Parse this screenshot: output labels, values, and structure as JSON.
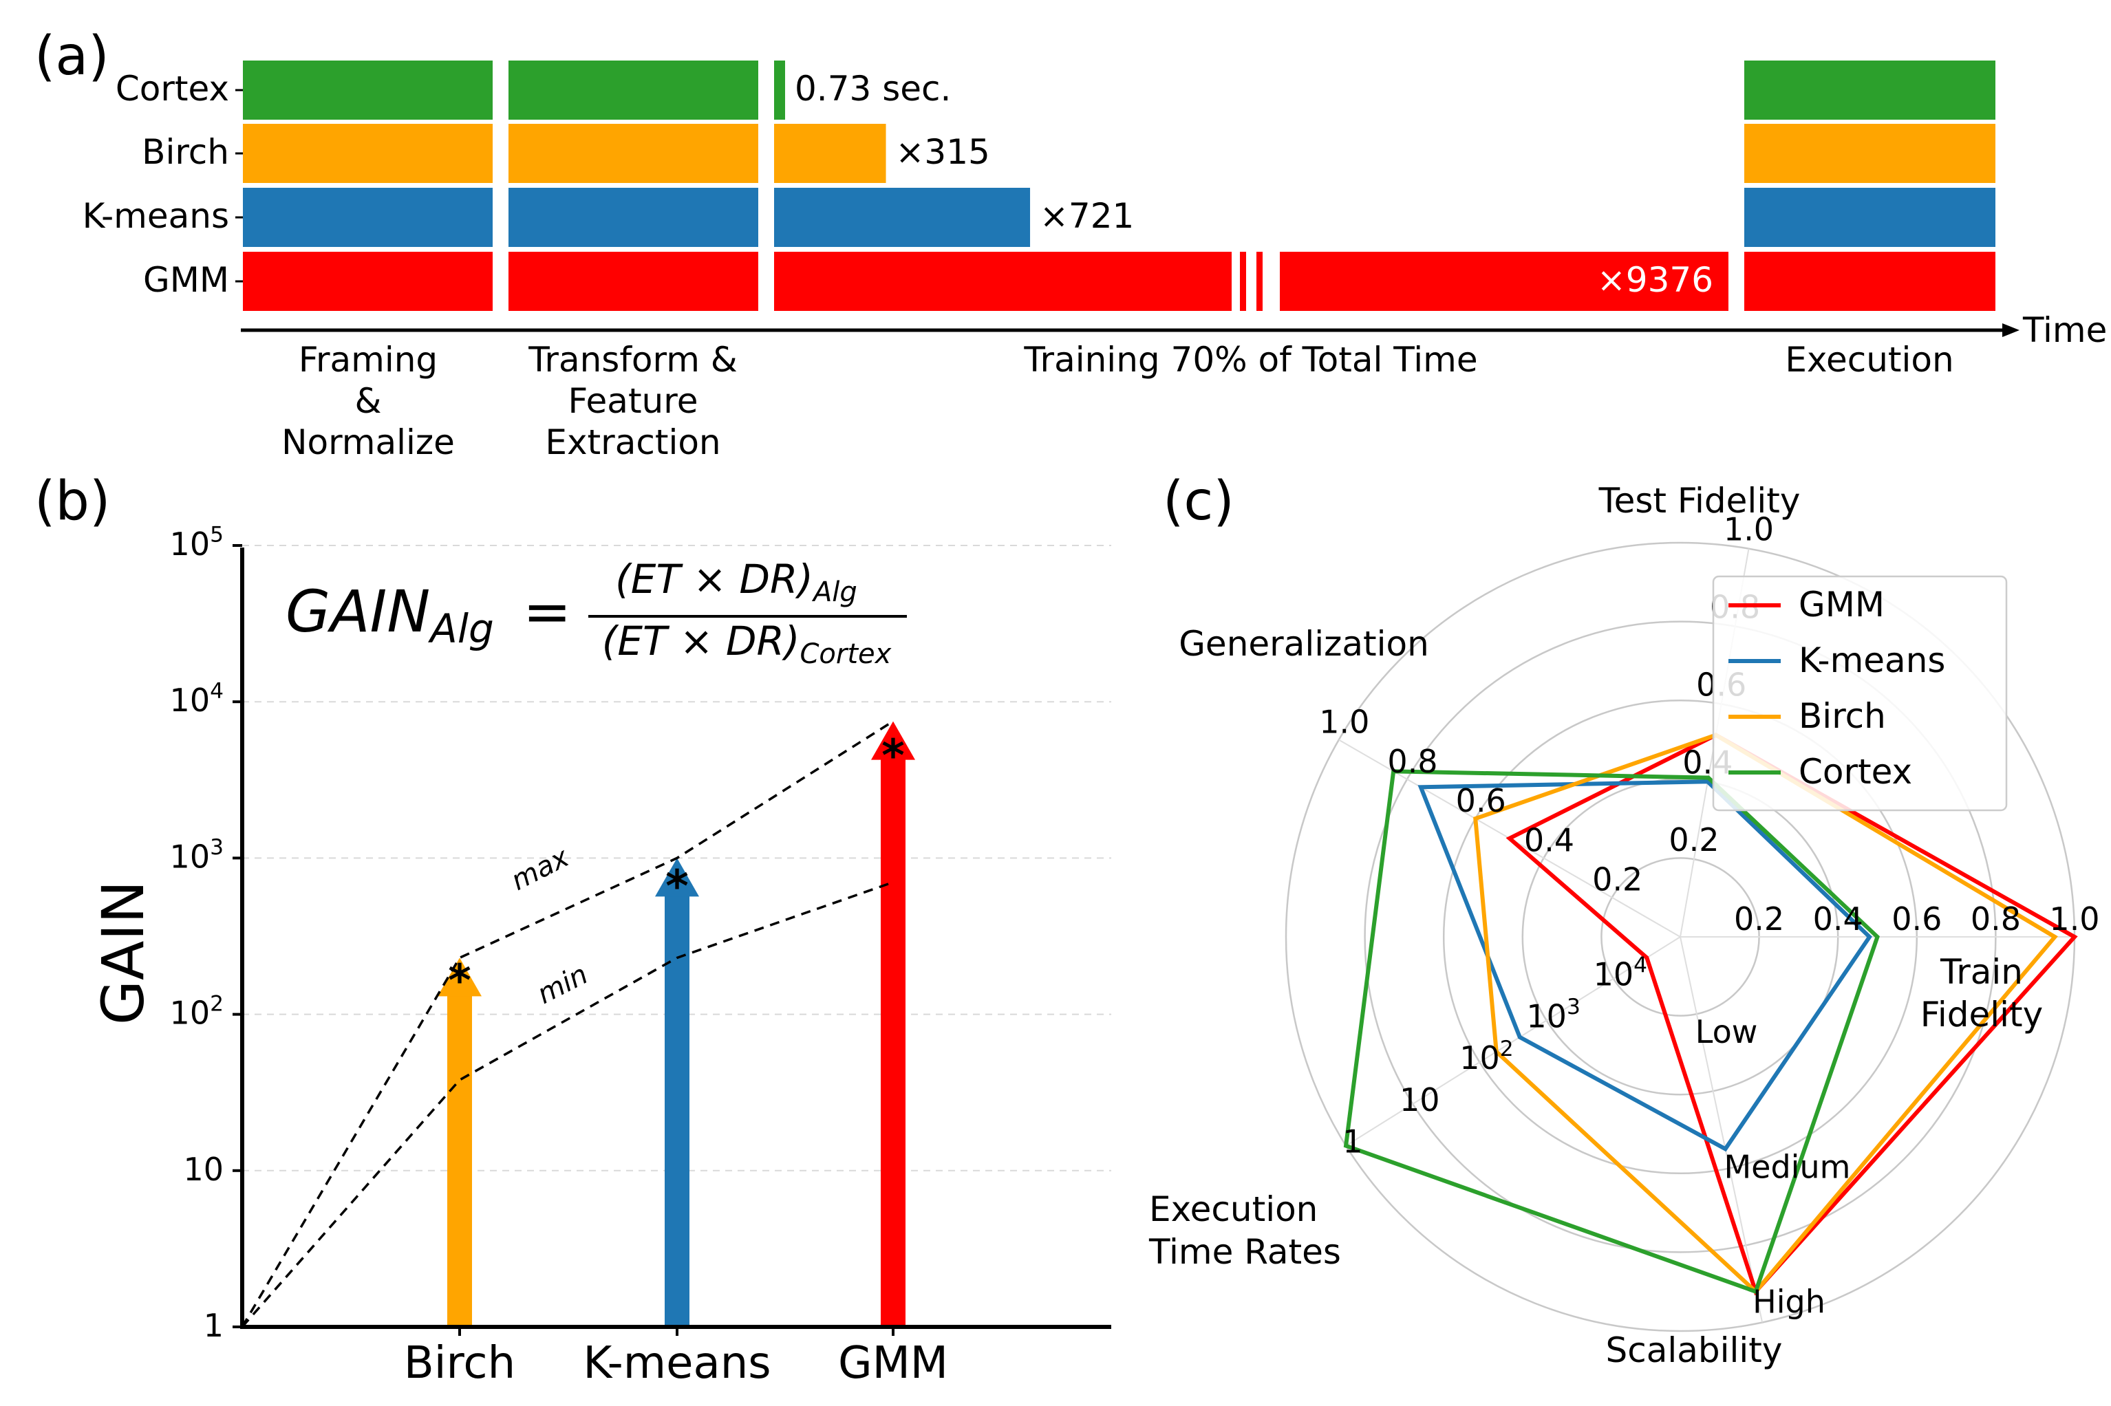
{
  "panels": {
    "a_label": "(a)",
    "b_label": "(b)",
    "c_label": "(c)"
  },
  "chart_data": [
    {
      "id": "a",
      "type": "bar",
      "orientation": "horizontal-stacked",
      "xlabel": "Time",
      "rows": [
        {
          "name": "Cortex",
          "color": "#2ca02c",
          "note": "0.73 sec.",
          "training_ratio": 1
        },
        {
          "name": "Birch",
          "color": "#ffa500",
          "note": "×315",
          "training_ratio": 315
        },
        {
          "name": "K-means",
          "color": "#1f77b4",
          "note": "×721",
          "training_ratio": 721
        },
        {
          "name": "GMM",
          "color": "#ff0000",
          "note": "×9376",
          "training_ratio": 9376
        }
      ],
      "stages": [
        {
          "label": [
            "Framing",
            "&",
            "Normalize"
          ]
        },
        {
          "label": [
            "Transform &",
            "Feature",
            "Extraction"
          ]
        },
        {
          "label": [
            "Training 70% of Total Time"
          ]
        },
        {
          "label": [
            "Execution"
          ]
        }
      ]
    },
    {
      "id": "b",
      "type": "bar",
      "scale": "log",
      "ylabel": "GAIN",
      "ylim": [
        1,
        100000
      ],
      "yticks": [
        {
          "value": 1,
          "base": "1",
          "exp": ""
        },
        {
          "value": 10,
          "base": "10",
          "exp": ""
        },
        {
          "value": 100,
          "base": "10",
          "exp": "2"
        },
        {
          "value": 1000,
          "base": "10",
          "exp": "3"
        },
        {
          "value": 10000,
          "base": "10",
          "exp": "4"
        },
        {
          "value": 100000,
          "base": "10",
          "exp": "5"
        }
      ],
      "categories": [
        "Birch",
        "K-means",
        "GMM"
      ],
      "colors": [
        "#ffa500",
        "#1f77b4",
        "#ff0000"
      ],
      "values": [
        230,
        1000,
        7500
      ],
      "markers": [
        175,
        700,
        4800
      ],
      "max_line": [
        1,
        230,
        1000,
        7500
      ],
      "min_line": [
        1,
        38,
        230,
        700
      ],
      "max_label": "max",
      "min_label": "min",
      "formula": {
        "lhs": "GAIN",
        "lhs_sub": "Alg",
        "equals": "=",
        "num": "(ET × DR)",
        "num_sub": "Alg",
        "den": "(ET × DR)",
        "den_sub": "Cortex"
      }
    },
    {
      "id": "c",
      "type": "radar",
      "axes": [
        {
          "name": "Train Fidelity",
          "label": [
            "Train",
            "Fidelity"
          ]
        },
        {
          "name": "Test Fidelity",
          "label": [
            "Test Fidelity"
          ]
        },
        {
          "name": "Generalization",
          "label": [
            "Generalization"
          ]
        },
        {
          "name": "Execution Time Rates",
          "label": [
            "Execution",
            "Time Rates"
          ]
        },
        {
          "name": "Scalability",
          "label": [
            "Scalability"
          ]
        }
      ],
      "rlim": [
        0,
        1
      ],
      "train_ticks": [
        "0.2",
        "0.4",
        "0.6",
        "0.8",
        "1.0"
      ],
      "test_ticks": [
        "0.2",
        "0.4",
        "0.6",
        "0.8",
        "1.0"
      ],
      "gen_ticks": [
        "0.2",
        "0.4",
        "0.6",
        "0.8",
        "1.0"
      ],
      "exec_ticks": [
        {
          "base": "10",
          "exp": "4"
        },
        {
          "base": "10",
          "exp": "3"
        },
        {
          "base": "10",
          "exp": "2"
        },
        {
          "base": "10",
          "exp": ""
        },
        {
          "base": "1",
          "exp": ""
        }
      ],
      "scal_ticks": [
        "Low",
        "Medium",
        "High"
      ],
      "series": [
        {
          "name": "GMM",
          "color": "#ff0000",
          "values": [
            1.0,
            0.52,
            0.5,
            0.1,
            0.92
          ]
        },
        {
          "name": "K-means",
          "color": "#1f77b4",
          "values": [
            0.48,
            0.4,
            0.76,
            0.48,
            0.55
          ]
        },
        {
          "name": "Birch",
          "color": "#ffa500",
          "values": [
            0.95,
            0.52,
            0.6,
            0.55,
            0.92
          ]
        },
        {
          "name": "Cortex",
          "color": "#2ca02c",
          "values": [
            0.5,
            0.41,
            0.84,
            1.0,
            0.92
          ]
        }
      ]
    }
  ]
}
